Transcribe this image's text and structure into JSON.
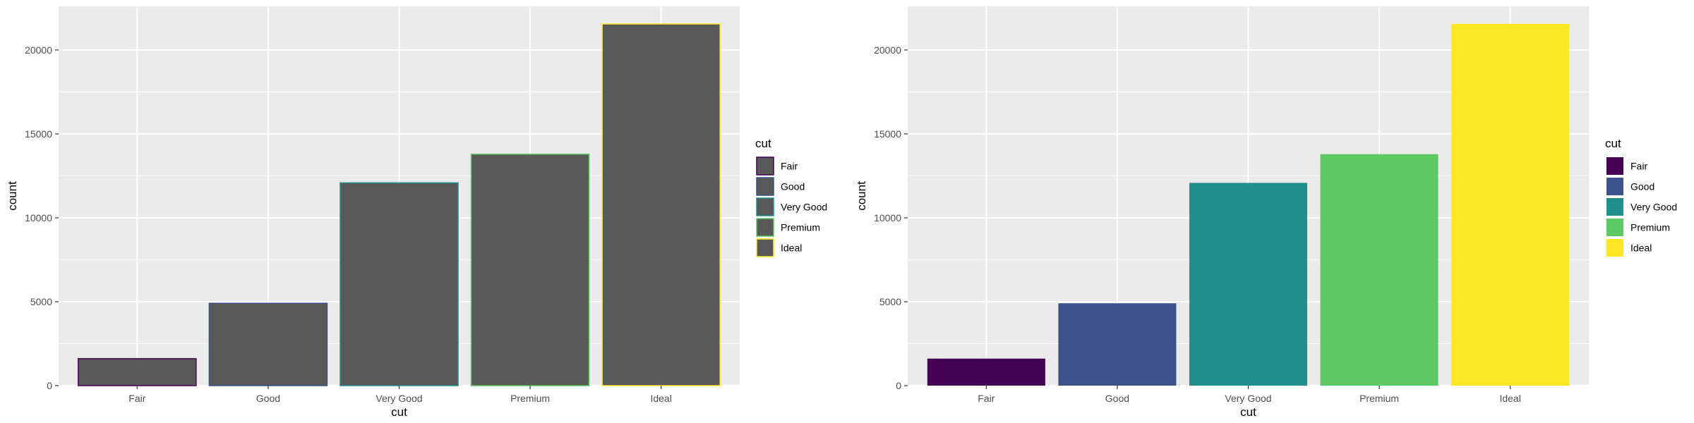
{
  "chart_data": [
    {
      "type": "bar",
      "xlabel": "cut",
      "ylabel": "count",
      "categories": [
        "Fair",
        "Good",
        "Very Good",
        "Premium",
        "Ideal"
      ],
      "values": [
        1610,
        4906,
        12082,
        13791,
        21551
      ],
      "ylim": [
        0,
        22600
      ],
      "yticks": [
        0,
        5000,
        10000,
        15000,
        20000
      ],
      "ytick_labels": [
        "0",
        "5000",
        "10000",
        "15000",
        "20000"
      ],
      "grid": true,
      "fill_mode": "outline",
      "bar_fill": "#595959",
      "colors": [
        "#440154",
        "#3b528b",
        "#21908c",
        "#5dc963",
        "#fde725"
      ],
      "legend": {
        "title": "cut",
        "position": "right",
        "entries": [
          "Fair",
          "Good",
          "Very Good",
          "Premium",
          "Ideal"
        ]
      }
    },
    {
      "type": "bar",
      "xlabel": "cut",
      "ylabel": "count",
      "categories": [
        "Fair",
        "Good",
        "Very Good",
        "Premium",
        "Ideal"
      ],
      "values": [
        1610,
        4906,
        12082,
        13791,
        21551
      ],
      "ylim": [
        0,
        22600
      ],
      "yticks": [
        0,
        5000,
        10000,
        15000,
        20000
      ],
      "ytick_labels": [
        "0",
        "5000",
        "10000",
        "15000",
        "20000"
      ],
      "grid": true,
      "fill_mode": "fill",
      "bar_fill": "#595959",
      "colors": [
        "#440154",
        "#3b528b",
        "#21908c",
        "#5dc963",
        "#fde725"
      ],
      "legend": {
        "title": "cut",
        "position": "right",
        "entries": [
          "Fair",
          "Good",
          "Very Good",
          "Premium",
          "Ideal"
        ]
      }
    }
  ]
}
